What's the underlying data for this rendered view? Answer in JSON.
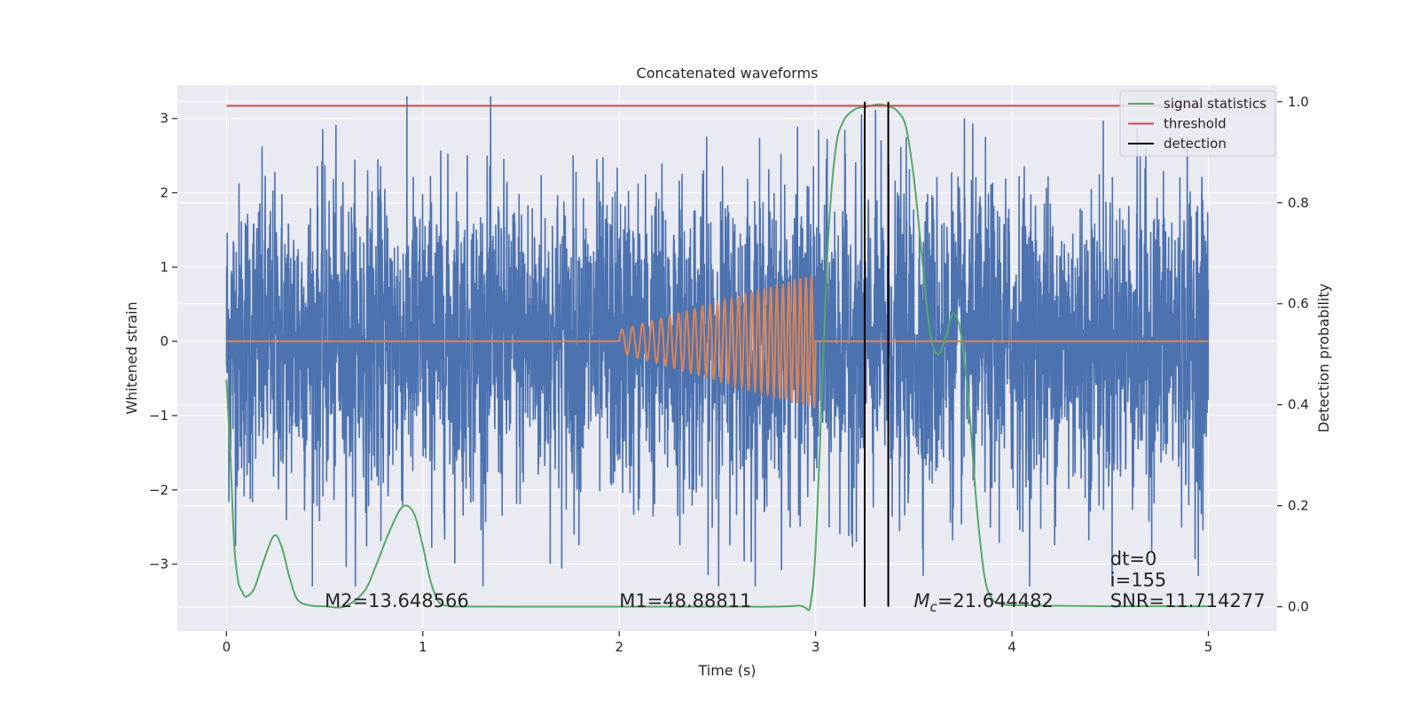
{
  "chart_data": {
    "type": "line",
    "title": "Concatenated waveforms",
    "xlabel": "Time (s)",
    "ylabel": "Whitened strain",
    "y2label": "Detection probability",
    "xlim": [
      -0.25,
      5.35
    ],
    "ylim": [
      -3.9,
      3.45
    ],
    "y2lim": [
      -0.048,
      1.033
    ],
    "xticks": [
      0,
      1,
      2,
      3,
      4,
      5
    ],
    "xtick_labels": [
      "0",
      "1",
      "2",
      "3",
      "4",
      "5"
    ],
    "yticks": [
      -3,
      -2,
      -1,
      0,
      1,
      2,
      3
    ],
    "ytick_labels": [
      "−3",
      "−2",
      "−1",
      "0",
      "1",
      "2",
      "3"
    ],
    "y2ticks": [
      0.0,
      0.2,
      0.4,
      0.6,
      0.8,
      1.0
    ],
    "y2tick_labels": [
      "0.0",
      "0.2",
      "0.4",
      "0.6",
      "0.8",
      "1.0"
    ],
    "grid": true,
    "legend_position": "top-right",
    "colors": {
      "strain": "#4c72b0",
      "template": "#dd8452",
      "signal": "#55a868",
      "threshold": "#c44e52",
      "detection": "#000000",
      "background": "#eaeaf2",
      "grid": "#ffffff"
    },
    "series": [
      {
        "name": "",
        "axis": "left",
        "kind": "noise",
        "x_range": [
          0,
          5
        ],
        "y_amplitude": 3.3
      },
      {
        "name": "",
        "axis": "left",
        "kind": "chirp",
        "x_range": [
          2.0,
          3.0
        ],
        "y_amplitude_range": [
          0.15,
          0.9
        ],
        "zero_elsewhere_range": [
          0,
          5
        ]
      },
      {
        "name": "signal statistics",
        "axis": "right",
        "x": [
          0,
          0.02,
          0.04,
          0.06,
          0.08,
          0.1,
          0.14,
          0.18,
          0.24,
          0.28,
          0.32,
          0.36,
          0.42,
          0.5,
          0.6,
          0.7,
          0.76,
          0.82,
          0.88,
          0.92,
          0.96,
          1.0,
          1.04,
          1.08,
          1.12,
          1.2,
          1.5,
          2.0,
          2.5,
          2.9,
          2.98,
          3.02,
          3.06,
          3.1,
          3.14,
          3.2,
          3.26,
          3.32,
          3.38,
          3.42,
          3.46,
          3.5,
          3.54,
          3.58,
          3.62,
          3.66,
          3.7,
          3.74,
          3.78,
          3.82,
          3.86,
          3.9,
          3.95,
          4.0,
          4.1,
          4.2,
          4.5,
          5.0
        ],
        "y": [
          0.45,
          0.3,
          0.12,
          0.05,
          0.03,
          0.02,
          0.035,
          0.08,
          0.14,
          0.12,
          0.06,
          0.015,
          0.003,
          0.001,
          0.0005,
          0.03,
          0.08,
          0.14,
          0.19,
          0.2,
          0.18,
          0.12,
          0.05,
          0.01,
          0.002,
          0.0005,
          0.0003,
          0.0003,
          0.0003,
          0.002,
          0.02,
          0.3,
          0.7,
          0.9,
          0.96,
          0.985,
          0.99,
          0.995,
          0.99,
          0.98,
          0.95,
          0.85,
          0.7,
          0.55,
          0.5,
          0.53,
          0.58,
          0.54,
          0.4,
          0.2,
          0.06,
          0.015,
          0.005,
          0.003,
          0.003,
          0.002,
          0.001,
          0.001
        ]
      },
      {
        "name": "threshold",
        "axis": "right",
        "x": [
          0,
          5
        ],
        "y": [
          0.992,
          0.992
        ]
      },
      {
        "name": "detection",
        "axis": "right",
        "x": [
          3.25,
          3.37
        ],
        "y_range": [
          0,
          1
        ]
      }
    ],
    "annotations": [
      {
        "text": "M2=13.648566",
        "x": 0.5,
        "y": -3.58
      },
      {
        "text": "M1=48.88811",
        "x": 2.0,
        "y": -3.58
      },
      {
        "text": "Mc=21.644482",
        "x": 3.5,
        "y": -3.58
      },
      {
        "text": "dt=0",
        "x": 4.5,
        "y": -3.01
      },
      {
        "text": "i=155",
        "x": 4.5,
        "y": -3.3
      },
      {
        "text": "SNR=11.714277",
        "x": 4.5,
        "y": -3.58
      }
    ]
  }
}
